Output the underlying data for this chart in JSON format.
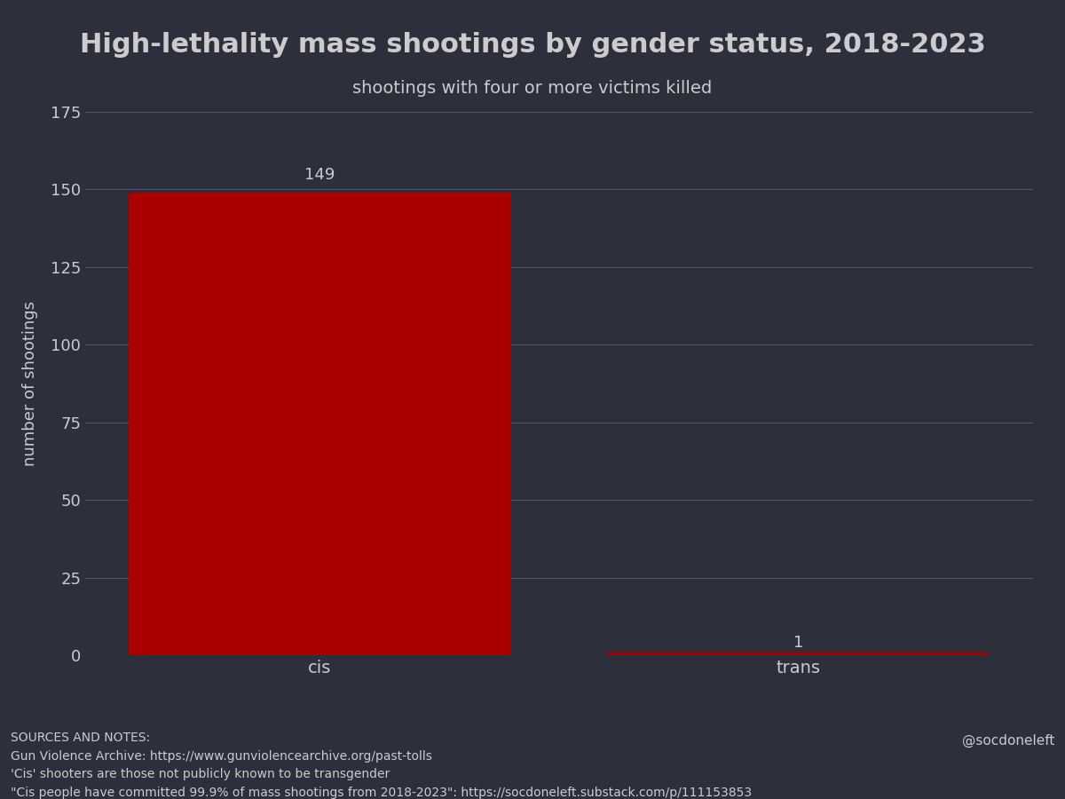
{
  "categories": [
    "cis",
    "trans"
  ],
  "values": [
    149,
    1
  ],
  "bar_color": "#aa0000",
  "background_color": "#2d2f3d",
  "text_color": "#cccccc",
  "title": "High-lethality mass shootings by gender status, 2018-2023",
  "subtitle": "shootings with four or more victims killed",
  "ylabel": "number of shootings",
  "ylim": [
    0,
    175
  ],
  "yticks": [
    0,
    25,
    50,
    75,
    100,
    125,
    150,
    175
  ],
  "grid_color": "#555870",
  "value_labels": [
    "149",
    "1"
  ],
  "sources_text": "SOURCES AND NOTES:\nGun Violence Archive: https://www.gunviolencearchive.org/past-tolls\n'Cis' shooters are those not publicly known to be transgender\n\"Cis people have committed 99.9% of mass shootings from 2018-2023\": https://socdoneleft.substack.com/p/111153853",
  "handle": "@socdoneleft",
  "title_fontsize": 22,
  "subtitle_fontsize": 14,
  "ylabel_fontsize": 13,
  "tick_fontsize": 13,
  "xlabel_fontsize": 14,
  "annotation_fontsize": 13,
  "sources_fontsize": 10,
  "handle_fontsize": 11
}
